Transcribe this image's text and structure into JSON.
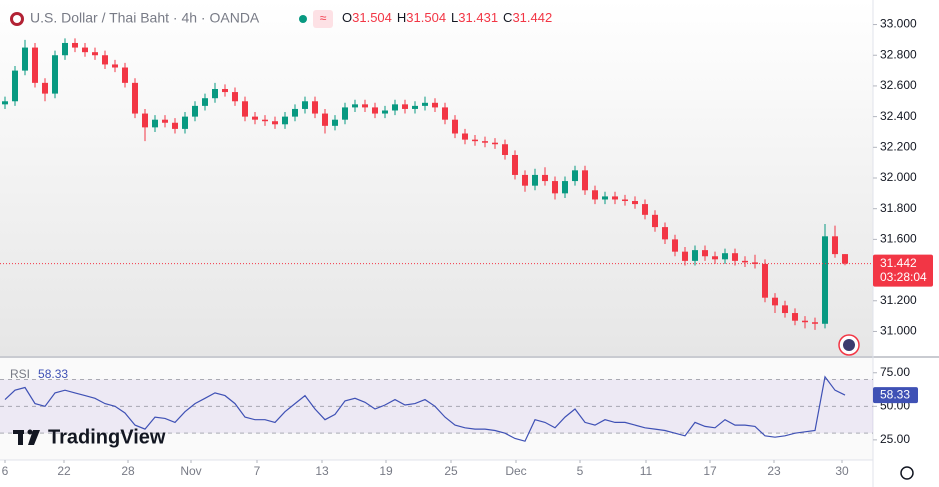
{
  "header": {
    "title": "U.S. Dollar / Thai Baht · 4h · OANDA",
    "ohlc": [
      {
        "label": "O",
        "value": "31.504"
      },
      {
        "label": "H",
        "value": "31.504"
      },
      {
        "label": "L",
        "value": "31.431"
      },
      {
        "label": "C",
        "value": "31.442"
      }
    ]
  },
  "price_tag": {
    "price": "31.442",
    "countdown": "03:28:04"
  },
  "logo": "TradingView",
  "chart_data": [
    {
      "type": "candlestick",
      "up_color": "#089981",
      "down_color": "#f23645",
      "grid": false,
      "xlim": [
        -0.5,
        86.8
      ],
      "xticks": [
        {
          "value": 0,
          "label": "6"
        },
        {
          "value": 5.9,
          "label": "22"
        },
        {
          "value": 12.3,
          "label": "28"
        },
        {
          "value": 18.6,
          "label": "Nov"
        },
        {
          "value": 25.2,
          "label": "7"
        },
        {
          "value": 31.7,
          "label": "13"
        },
        {
          "value": 38.1,
          "label": "19"
        },
        {
          "value": 44.6,
          "label": "25"
        },
        {
          "value": 51.1,
          "label": "Dec"
        },
        {
          "value": 57.5,
          "label": "5"
        },
        {
          "value": 64.1,
          "label": "11"
        },
        {
          "value": 70.5,
          "label": "17"
        },
        {
          "value": 76.9,
          "label": "23"
        },
        {
          "value": 83.7,
          "label": "30"
        }
      ],
      "ylim": [
        30.84,
        33.16
      ],
      "yticks": [
        {
          "value": 31,
          "label": "31.000"
        },
        {
          "value": 31.2,
          "label": "31.200"
        },
        {
          "value": 31.4,
          "label": "31.400"
        },
        {
          "value": 31.6,
          "label": "31.600"
        },
        {
          "value": 31.8,
          "label": "31.800"
        },
        {
          "value": 32,
          "label": "32.000"
        },
        {
          "value": 32.2,
          "label": "32.200"
        },
        {
          "value": 32.4,
          "label": "32.400"
        },
        {
          "value": 32.6,
          "label": "32.600"
        },
        {
          "value": 32.8,
          "label": "32.800"
        },
        {
          "value": 33,
          "label": "33.000"
        }
      ],
      "open": [
        32.48,
        32.5,
        32.7,
        32.85,
        32.62,
        32.55,
        32.8,
        32.88,
        32.85,
        32.82,
        32.8,
        32.74,
        32.72,
        32.62,
        32.42,
        32.33,
        32.38,
        32.36,
        32.32,
        32.4,
        32.47,
        32.52,
        32.58,
        32.56,
        32.5,
        32.4,
        32.38,
        32.37,
        32.35,
        32.4,
        32.45,
        32.5,
        32.42,
        32.34,
        32.38,
        32.46,
        32.48,
        32.46,
        32.42,
        32.44,
        32.48,
        32.45,
        32.47,
        32.49,
        32.46,
        32.38,
        32.29,
        32.25,
        32.24,
        32.23,
        32.22,
        32.15,
        32.02,
        31.95,
        32.02,
        31.98,
        31.9,
        31.98,
        32.05,
        31.92,
        31.86,
        31.88,
        31.86,
        31.85,
        31.83,
        31.76,
        31.68,
        31.6,
        31.52,
        31.46,
        31.53,
        31.49,
        31.47,
        31.51,
        31.46,
        31.45,
        31.44,
        31.22,
        31.17,
        31.12,
        31.07,
        31.06,
        31.05,
        31.62,
        31.504
      ],
      "high": [
        32.53,
        32.73,
        32.9,
        32.88,
        32.65,
        32.83,
        32.91,
        32.91,
        32.88,
        32.85,
        32.83,
        32.77,
        32.75,
        32.65,
        32.45,
        32.41,
        32.41,
        32.39,
        32.43,
        32.5,
        32.55,
        32.62,
        32.61,
        32.59,
        32.53,
        32.43,
        32.41,
        32.4,
        32.43,
        32.48,
        32.53,
        32.53,
        32.45,
        32.41,
        32.49,
        32.51,
        32.51,
        32.49,
        32.47,
        32.51,
        32.51,
        32.5,
        32.53,
        32.52,
        32.49,
        32.41,
        32.32,
        32.28,
        32.27,
        32.26,
        32.25,
        32.18,
        32.05,
        32.06,
        32.07,
        32.01,
        32.01,
        32.08,
        32.08,
        31.95,
        31.91,
        31.91,
        31.89,
        31.88,
        31.86,
        31.79,
        31.71,
        31.63,
        31.55,
        31.56,
        31.56,
        31.52,
        31.54,
        31.54,
        31.49,
        31.5,
        31.47,
        31.25,
        31.2,
        31.15,
        31.1,
        31.09,
        31.7,
        31.69,
        31.504
      ],
      "low": [
        32.45,
        32.47,
        32.67,
        32.59,
        32.5,
        32.52,
        32.77,
        32.82,
        32.79,
        32.77,
        32.71,
        32.69,
        32.59,
        32.39,
        32.24,
        32.3,
        32.33,
        32.29,
        32.29,
        32.37,
        32.44,
        32.49,
        32.53,
        32.47,
        32.37,
        32.35,
        32.34,
        32.32,
        32.32,
        32.37,
        32.42,
        32.39,
        32.29,
        32.31,
        32.35,
        32.43,
        32.43,
        32.39,
        32.39,
        32.41,
        32.42,
        32.42,
        32.44,
        32.43,
        32.35,
        32.26,
        32.22,
        32.21,
        32.2,
        32.19,
        32.12,
        31.99,
        31.91,
        31.92,
        31.95,
        31.86,
        31.87,
        31.95,
        31.89,
        31.83,
        31.83,
        31.83,
        31.82,
        31.8,
        31.73,
        31.65,
        31.57,
        31.49,
        31.43,
        31.43,
        31.46,
        31.44,
        31.44,
        31.43,
        31.42,
        31.41,
        31.19,
        31.12,
        31.09,
        31.04,
        31.02,
        31.01,
        31.02,
        31.48,
        31.431
      ],
      "close": [
        32.5,
        32.7,
        32.85,
        32.62,
        32.55,
        32.8,
        32.88,
        32.85,
        32.82,
        32.8,
        32.74,
        32.72,
        32.62,
        32.42,
        32.33,
        32.38,
        32.36,
        32.32,
        32.4,
        32.47,
        32.52,
        32.58,
        32.56,
        32.5,
        32.4,
        32.38,
        32.37,
        32.35,
        32.4,
        32.45,
        32.5,
        32.42,
        32.34,
        32.38,
        32.46,
        32.48,
        32.46,
        32.42,
        32.44,
        32.48,
        32.45,
        32.47,
        32.49,
        32.46,
        32.38,
        32.29,
        32.25,
        32.24,
        32.23,
        32.22,
        32.15,
        32.02,
        31.95,
        32.02,
        31.98,
        31.9,
        31.98,
        32.05,
        31.92,
        31.86,
        31.88,
        31.86,
        31.85,
        31.83,
        31.76,
        31.68,
        31.6,
        31.52,
        31.46,
        31.53,
        31.49,
        31.47,
        31.51,
        31.46,
        31.45,
        31.44,
        31.22,
        31.17,
        31.12,
        31.07,
        31.06,
        31.05,
        31.62,
        31.504,
        31.442
      ]
    },
    {
      "type": "line",
      "name": "RSI",
      "value_label": "58.33",
      "color": "#3f51b5",
      "band": [
        30,
        70
      ],
      "band_color": "#7e57c2",
      "midline": 50,
      "ylim": [
        10,
        86
      ],
      "yticks": [
        {
          "value": 25,
          "label": "25.00"
        },
        {
          "value": 50,
          "label": "50.00"
        },
        {
          "value": 75,
          "label": "75.00"
        }
      ],
      "values": [
        55,
        62,
        64,
        52,
        50,
        60,
        62,
        60,
        58,
        56,
        52,
        50,
        45,
        36,
        33,
        42,
        41,
        38,
        46,
        52,
        56,
        60,
        58,
        52,
        42,
        40,
        40,
        38,
        46,
        52,
        58,
        48,
        40,
        44,
        54,
        56,
        53,
        48,
        51,
        55,
        51,
        52,
        55,
        50,
        42,
        36,
        34,
        33,
        33,
        32,
        30,
        26,
        24,
        40,
        38,
        34,
        42,
        48,
        38,
        36,
        40,
        38,
        38,
        36,
        34,
        33,
        32,
        30,
        28,
        38,
        35,
        34,
        40,
        36,
        36,
        35,
        28,
        27,
        28,
        30,
        31,
        32,
        72,
        62,
        58.33
      ]
    }
  ]
}
